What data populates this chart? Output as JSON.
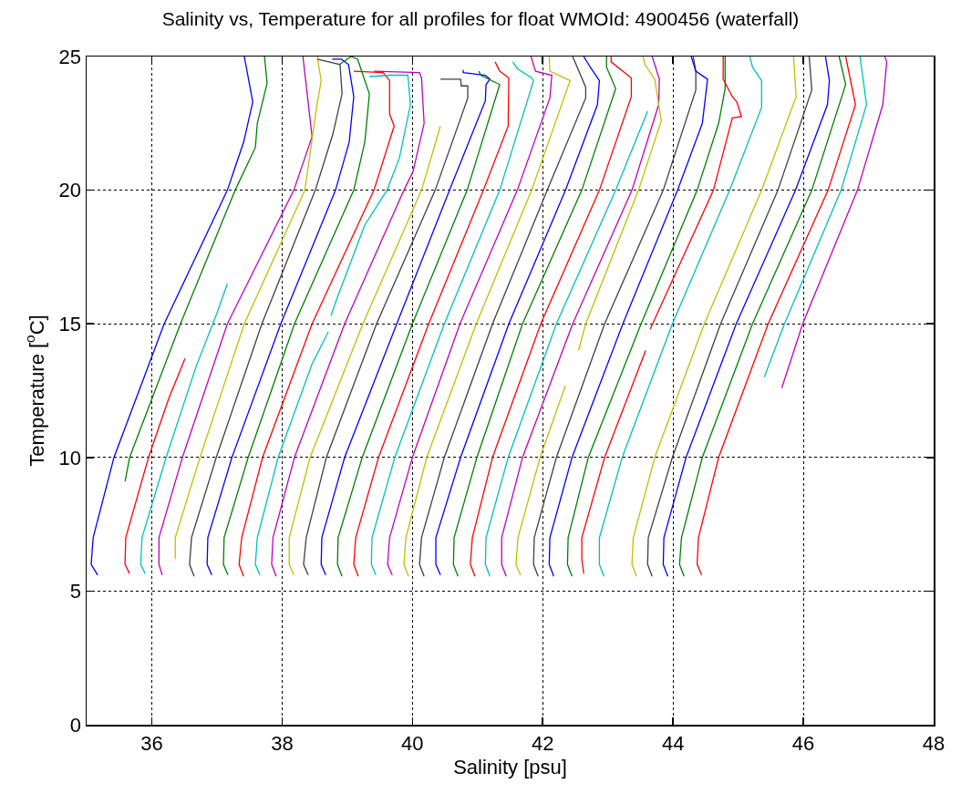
{
  "chart_data": {
    "type": "line",
    "title": "Salinity vs, Temperature for all profiles for float WMOId: 4900456 (waterfall)",
    "xlabel": "Salinity [psu]",
    "ylabel": "Temperature [$^{o}$C]",
    "xlim": [
      35,
      48
    ],
    "xticks": [
      36,
      38,
      40,
      42,
      44,
      46,
      48
    ],
    "ylim": [
      0,
      25
    ],
    "yticks": [
      0,
      5,
      10,
      15,
      20,
      25
    ],
    "grid": true,
    "marker": "none",
    "line_style": "solid",
    "series": [
      {
        "color": "#0000ff",
        "x": [
          35.17,
          35.07,
          35.1,
          35.42,
          36.19,
          37.16,
          37.41,
          37.55,
          37.42
        ],
        "values": [
          5.6,
          6.0,
          7,
          10,
          15,
          20,
          21.8,
          23.3,
          25
        ]
      },
      {
        "color": "#008000",
        "x": [
          35.59,
          35.66,
          36.44,
          37.28,
          37.59,
          37.62,
          37.77,
          37.73
        ],
        "values": [
          9.1,
          10,
          15,
          20,
          21.6,
          22.5,
          24.0,
          25
        ]
      },
      {
        "color": "#ff0000",
        "x": [
          35.66,
          35.59,
          35.6,
          35.95,
          36.26,
          36.51
        ],
        "values": [
          5.65,
          6.0,
          7,
          10,
          12.2,
          13.7
        ]
      },
      {
        "color": "#00bfbf",
        "x": [
          35.9,
          35.83,
          35.85,
          36.22,
          36.68,
          37.0,
          37.16
        ],
        "values": [
          5.65,
          6.0,
          7,
          10,
          13.4,
          15.4,
          16.5
        ]
      },
      {
        "color": "#bf00bf",
        "x": [
          36.16,
          36.11,
          36.11,
          36.47,
          37.16,
          38.18,
          38.46,
          38.32
        ],
        "values": [
          5.6,
          6.0,
          7,
          10,
          15,
          20,
          22.0,
          25
        ]
      },
      {
        "color": "#bfbf00",
        "x": [
          36.36,
          36.36,
          36.74,
          37.42,
          38.35,
          38.53,
          38.6,
          38.54
        ],
        "values": [
          6.2,
          7,
          10,
          15,
          20,
          23.1,
          24.1,
          25
        ]
      },
      {
        "color": "#404040",
        "x": [
          36.65,
          36.58,
          36.61,
          36.99,
          37.69,
          38.51,
          38.78,
          38.92,
          38.89,
          38.54
        ],
        "values": [
          5.55,
          6.0,
          7,
          10,
          15,
          20,
          22.1,
          23.6,
          24.7,
          24.9
        ]
      },
      {
        "color": "#0000ff",
        "x": [
          36.92,
          36.85,
          36.86,
          37.23,
          37.98,
          38.82,
          39.03,
          39.1,
          39.02,
          38.91,
          38.77
        ],
        "values": [
          5.6,
          6.0,
          7,
          10,
          15,
          20,
          21.8,
          23.5,
          24.7,
          24.9,
          24.9
        ]
      },
      {
        "color": "#008000",
        "x": [
          37.17,
          37.1,
          37.11,
          37.48,
          38.19,
          39.1,
          39.27,
          39.34,
          39.16,
          39.06,
          38.88
        ],
        "values": [
          5.6,
          6.0,
          7,
          10,
          15,
          20,
          21.8,
          23.6,
          24.9,
          25,
          24.7
        ]
      },
      {
        "color": "#ff0000",
        "x": [
          37.41,
          37.34,
          37.38,
          37.7,
          38.46,
          39.41,
          39.72,
          39.65,
          39.65,
          39.55,
          39.1
        ],
        "values": [
          5.55,
          6.0,
          7,
          10,
          15,
          20,
          22.4,
          22.85,
          24.1,
          24.4,
          24.45
        ]
      },
      {
        "color": "#00bfbf",
        "x": [
          37.66,
          37.59,
          37.62,
          37.94,
          38.46,
          38.71,
          38.73,
          38.75,
          38.82,
          39.27,
          39.61,
          39.8,
          39.97,
          39.93,
          39.66,
          39.34
        ],
        "values": [
          5.6,
          6.0,
          7,
          10,
          13.5,
          14.7,
          null,
          15.3,
          15.8,
          18.7,
          20,
          21.2,
          23.2,
          24.3,
          24.3,
          24.25
        ]
      },
      {
        "color": "#bf00bf",
        "x": [
          37.91,
          37.84,
          37.86,
          38.19,
          38.96,
          39.87,
          40.01,
          40.18,
          40.14,
          40.11,
          39.41
        ],
        "values": [
          5.55,
          6.0,
          7,
          10,
          15,
          20,
          20.7,
          22.5,
          24.2,
          24.4,
          24.45
        ]
      },
      {
        "color": "#bfbf00",
        "x": [
          38.18,
          38.11,
          38.11,
          38.43,
          39.24,
          40.14,
          40.43
        ],
        "values": [
          5.6,
          6.0,
          7,
          10,
          15,
          20,
          22.4
        ]
      },
      {
        "color": "#404040",
        "x": [
          38.4,
          38.33,
          38.37,
          38.68,
          39.45,
          40.35,
          40.85,
          40.85,
          40.75,
          40.74,
          40.43
        ],
        "values": [
          5.6,
          6.0,
          7,
          10,
          15,
          20,
          23.45,
          23.9,
          23.9,
          24.15,
          24.15
        ]
      },
      {
        "color": "#0000ff",
        "x": [
          38.67,
          38.6,
          38.61,
          38.96,
          39.76,
          40.57,
          41.12,
          41.13,
          41.19,
          41.12,
          40.78,
          40.78
        ],
        "values": [
          5.6,
          6.0,
          7,
          10,
          15,
          20,
          23.35,
          23.95,
          24.15,
          24.3,
          24.4,
          24.5
        ]
      },
      {
        "color": "#008000",
        "x": [
          38.92,
          38.85,
          38.86,
          39.23,
          40.0,
          40.84,
          41.34,
          41.05,
          41.02
        ],
        "values": [
          5.55,
          6.0,
          7,
          10,
          15,
          20,
          23.95,
          24.3,
          24.45
        ]
      },
      {
        "color": "#ff0000",
        "x": [
          39.17,
          39.1,
          39.13,
          39.48,
          40.25,
          41.09,
          41.47,
          41.48,
          41.34,
          41.27
        ],
        "values": [
          5.55,
          6.0,
          7,
          10,
          15,
          20,
          22.4,
          24.2,
          24.45,
          24.8
        ]
      },
      {
        "color": "#00bfbf",
        "x": [
          39.44,
          39.37,
          39.38,
          39.73,
          40.49,
          41.34,
          41.86,
          41.83,
          41.61,
          41.54
        ],
        "values": [
          5.6,
          6.0,
          7,
          10,
          15,
          20,
          24.1,
          24.2,
          24.55,
          24.8
        ]
      },
      {
        "color": "#bf00bf",
        "x": [
          39.69,
          39.62,
          39.65,
          40.0,
          40.73,
          41.61,
          42.11,
          42.14,
          41.89,
          41.82
        ],
        "values": [
          5.6,
          6.0,
          7,
          10,
          15,
          20,
          23.45,
          24.3,
          24.45,
          25
        ]
      },
      {
        "color": "#bfbf00",
        "x": [
          39.94,
          39.87,
          39.9,
          40.22,
          40.98,
          41.83,
          42.42,
          42.11,
          42.1
        ],
        "values": [
          5.55,
          6.0,
          7,
          10,
          15,
          20,
          24.1,
          24.45,
          25
        ]
      },
      {
        "color": "#404040",
        "x": [
          40.18,
          40.11,
          40.14,
          40.49,
          41.23,
          42.07,
          42.66,
          42.66,
          42.46
        ],
        "values": [
          5.55,
          6.0,
          7,
          10,
          15,
          20,
          23.45,
          23.85,
          25
        ]
      },
      {
        "color": "#0000ff",
        "x": [
          40.43,
          40.36,
          40.36,
          40.74,
          41.48,
          42.35,
          42.84,
          42.87,
          42.73,
          42.63
        ],
        "values": [
          5.6,
          6.0,
          7,
          10,
          15,
          20,
          23.2,
          24.1,
          24.6,
          25
        ]
      },
      {
        "color": "#008000",
        "x": [
          40.7,
          40.63,
          40.64,
          40.99,
          41.69,
          42.6,
          43.12,
          42.98,
          42.98
        ],
        "values": [
          5.55,
          6.0,
          7,
          10,
          15,
          20,
          23.8,
          24.6,
          25
        ]
      },
      {
        "color": "#ff0000",
        "x": [
          40.96,
          40.89,
          40.92,
          41.23,
          41.97,
          42.87,
          43.36,
          43.36,
          43.05,
          43.05
        ],
        "values": [
          5.55,
          6.0,
          7,
          10,
          15,
          20,
          23.5,
          24.2,
          24.8,
          25
        ]
      },
      {
        "color": "#00bfbf",
        "x": [
          41.19,
          41.12,
          41.13,
          41.47,
          42.21,
          43.12,
          43.61
        ],
        "values": [
          5.55,
          6.0,
          7,
          10,
          15,
          20,
          22.95
        ]
      },
      {
        "color": "#bf00bf",
        "x": [
          41.44,
          41.37,
          41.37,
          41.69,
          42.46,
          43.37,
          43.78,
          43.79,
          43.68
        ],
        "values": [
          5.55,
          6.0,
          7,
          10,
          15,
          20,
          23.2,
          24.15,
          25
        ]
      },
      {
        "color": "#bfbf00",
        "x": [
          41.66,
          41.59,
          41.62,
          41.96,
          42.35
        ],
        "values": [
          5.6,
          6.0,
          7,
          10,
          12.7
        ]
      },
      {
        "color": "#bfbf00",
        "x": [
          42.55,
          42.66,
          43.47,
          43.82,
          43.72,
          43.57,
          43.54
        ],
        "values": [
          14,
          15,
          20,
          22.6,
          24.15,
          24.7,
          25
        ]
      },
      {
        "color": "#404040",
        "x": [
          41.93,
          41.86,
          41.87,
          42.21,
          42.95,
          43.85,
          44.35,
          44.35,
          44.31
        ],
        "values": [
          5.55,
          6.0,
          7,
          10,
          15,
          20,
          23.75,
          24.45,
          25
        ]
      },
      {
        "color": "#0000ff",
        "x": [
          42.17,
          42.1,
          42.11,
          42.45,
          43.23,
          44.07,
          44.45,
          44.53,
          44.35,
          44.28
        ],
        "values": [
          5.55,
          6.0,
          7,
          10,
          15,
          20,
          22.5,
          24.15,
          24.45,
          25
        ]
      },
      {
        "color": "#008000",
        "x": [
          42.45,
          42.38,
          42.39,
          42.7,
          43.51,
          44.37,
          44.7,
          44.8,
          44.8
        ],
        "values": [
          5.55,
          6.0,
          7,
          10,
          15,
          20,
          22.5,
          23.8,
          25
        ]
      },
      {
        "color": "#ff0000",
        "x": [
          42.63,
          42.6,
          42.6,
          42.95,
          43.58,
          43.61,
          43.65,
          44.62,
          44.91,
          45.05,
          44.98,
          44.91,
          44.77,
          44.77
        ],
        "values": [
          5.65,
          6.2,
          7,
          10,
          14.0,
          null,
          14.8,
          20,
          22.7,
          22.75,
          23.3,
          23.5,
          24.15,
          25
        ]
      },
      {
        "color": "#00bfbf",
        "x": [
          42.94,
          42.87,
          42.87,
          43.22,
          43.99,
          44.87,
          45.36,
          45.36,
          45.22,
          45.18
        ],
        "values": [
          5.55,
          6.0,
          7,
          10,
          15,
          20,
          23.1,
          24.1,
          24.6,
          25
        ]
      },
      {
        "color": "#bfbf00",
        "x": [
          43.44,
          43.37,
          43.39,
          43.72,
          44.48,
          45.36,
          45.89,
          45.85
        ],
        "values": [
          5.55,
          6.0,
          7,
          10,
          15,
          20,
          23.5,
          25
        ]
      },
      {
        "color": "#404040",
        "x": [
          43.68,
          43.61,
          43.62,
          43.99,
          44.73,
          45.61,
          46.13,
          46.09
        ],
        "values": [
          5.55,
          6.0,
          7,
          10,
          15,
          20,
          23.75,
          25
        ]
      },
      {
        "color": "#0000ff",
        "x": [
          43.92,
          43.85,
          43.86,
          44.2,
          44.97,
          45.88,
          46.37,
          46.4,
          46.34
        ],
        "values": [
          5.55,
          6.0,
          7,
          10,
          15,
          20,
          23.2,
          24.1,
          25
        ]
      },
      {
        "color": "#008000",
        "x": [
          44.17,
          44.1,
          44.13,
          44.45,
          45.22,
          46.13,
          46.65,
          46.55
        ],
        "values": [
          5.55,
          6.0,
          7,
          10,
          15,
          20,
          23.95,
          25
        ]
      },
      {
        "color": "#ff0000",
        "x": [
          44.44,
          44.37,
          44.39,
          44.7,
          45.46,
          46.38,
          46.8,
          46.65
        ],
        "values": [
          5.6,
          6.0,
          7,
          10,
          15,
          20,
          23.2,
          25
        ]
      },
      {
        "color": "#00bfbf",
        "x": [
          45.4,
          45.71,
          46.58,
          46.97,
          46.87
        ],
        "values": [
          13.0,
          15,
          20,
          23.2,
          25
        ]
      },
      {
        "color": "#bf00bf",
        "x": [
          45.67,
          45.99,
          46.83,
          47.22,
          47.28,
          47.25
        ],
        "values": [
          12.6,
          15,
          20,
          23.2,
          24.8,
          25
        ]
      }
    ]
  }
}
